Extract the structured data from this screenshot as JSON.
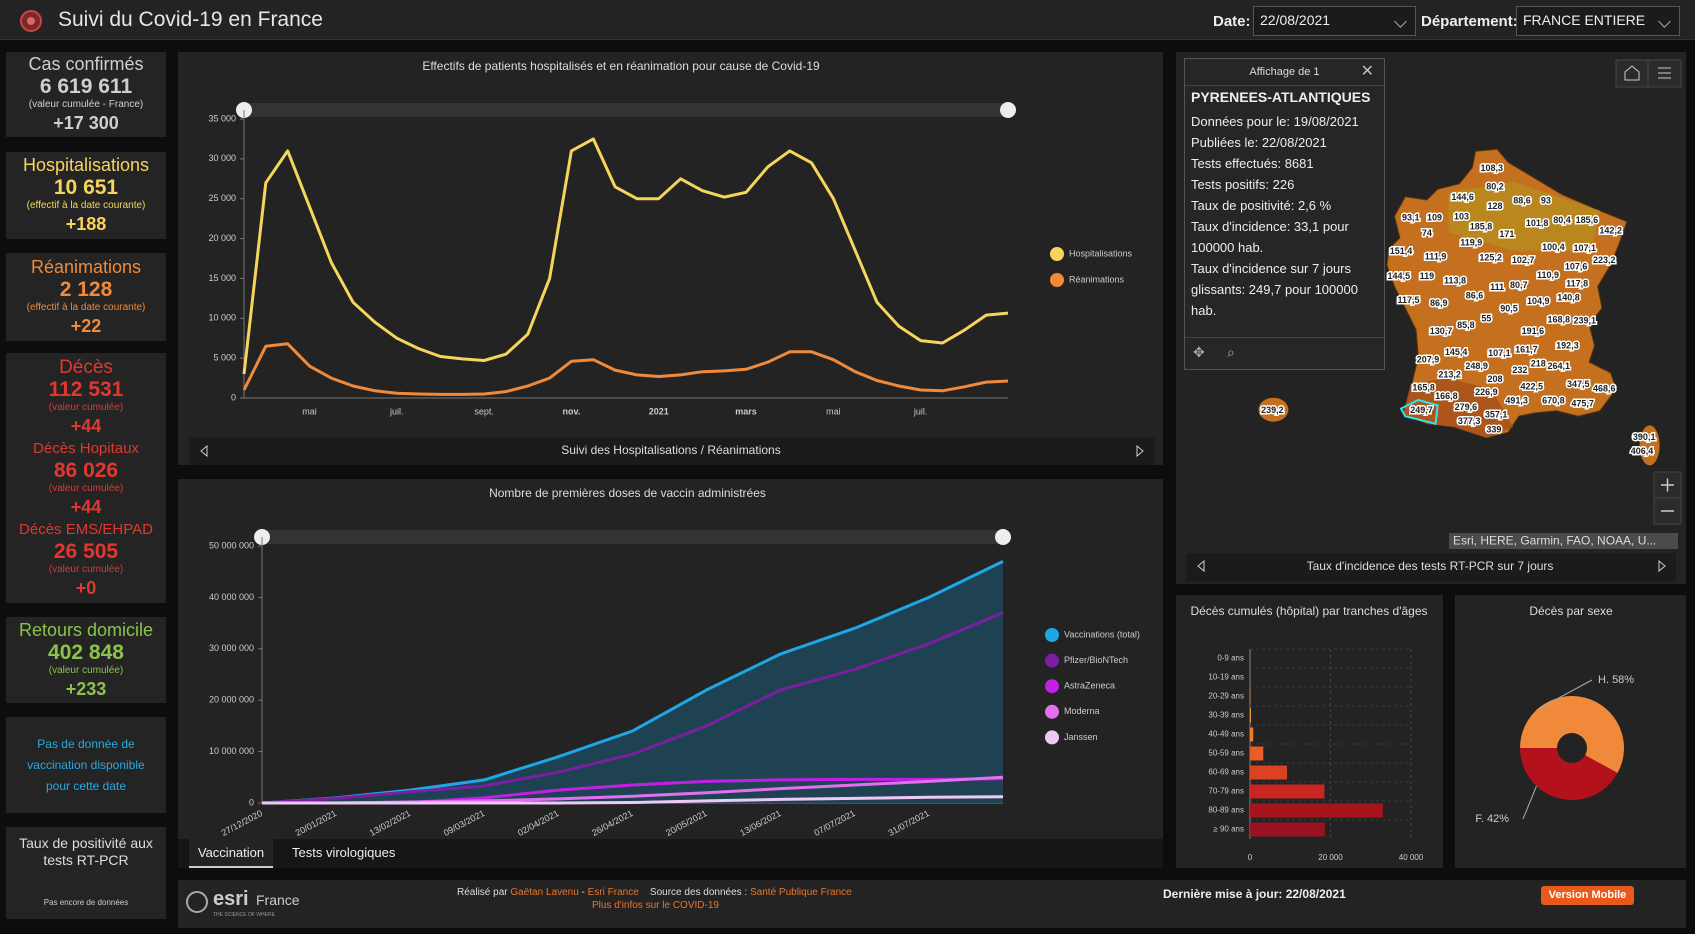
{
  "header": {
    "title": "Suivi du Covid-19 en France",
    "date_label": "Date:",
    "date": "22/08/2021",
    "dept_label": "Département:",
    "dept": "FRANCE ENTIERE"
  },
  "sidebar": {
    "cards": [
      {
        "color": "#cfcfcf",
        "entries": [
          {
            "title": "Cas confirmés",
            "value": "6 619 611",
            "note": "(valeur cumulée - France)",
            "delta": "+17 300"
          }
        ]
      },
      {
        "color": "#f6d55c",
        "entries": [
          {
            "title": "Hospitalisations",
            "value": "10 651",
            "note": "(effectif à la date courante)",
            "delta": "+188"
          }
        ]
      },
      {
        "color": "#f08a3a",
        "entries": [
          {
            "title": "Réanimations",
            "value": "2 128",
            "note": "(effectif à la date courante)",
            "delta": "+22"
          }
        ]
      },
      {
        "color": "#e0382e",
        "entries": [
          {
            "title": "Décès",
            "value": "112 531",
            "note": "(valeur cumulée)",
            "delta": "+44"
          },
          {
            "title": "Décès Hopitaux",
            "value": "86 026",
            "note": "(valeur cumulée)",
            "delta": "+44"
          },
          {
            "title": "Décès EMS/EHPAD",
            "value": "26 505",
            "note": "(valeur cumulée)",
            "delta": "+0"
          }
        ]
      },
      {
        "color": "#8bc34a",
        "entries": [
          {
            "title": "Retours domicile",
            "value": "402 848",
            "note": "(valeur cumulée)",
            "delta": "+233"
          }
        ]
      }
    ],
    "vaccination_note": "Pas de donnée de vaccination disponible pour cette date",
    "positivity": {
      "title": "Taux de positivité aux tests RT-PCR",
      "note": "Pas encore de données"
    }
  },
  "chart_data": [
    {
      "type": "line",
      "title": "Effectifs de patients hospitalisés et en réanimation pour cause de Covid-19",
      "footer": "Suivi des Hospitalisations / Réanimations",
      "categories": [
        null,
        null,
        null,
        "mai",
        null,
        null,
        null,
        "juil.",
        null,
        null,
        null,
        "sept.",
        null,
        null,
        null,
        "nov.",
        null,
        null,
        null,
        "2021",
        null,
        null,
        null,
        "mars",
        null,
        null,
        null,
        "mai",
        null,
        null,
        null,
        "juil.",
        null,
        null,
        null,
        null
      ],
      "series": [
        {
          "name": "Hospitalisations",
          "color": "#f6d55c",
          "values": [
            3000,
            27000,
            31000,
            24000,
            17000,
            12000,
            9500,
            7500,
            6200,
            5200,
            4900,
            4700,
            5500,
            8000,
            15000,
            31000,
            32500,
            26500,
            25000,
            25000,
            27500,
            26000,
            25200,
            25800,
            29000,
            31000,
            29500,
            25000,
            18500,
            12000,
            9000,
            7200,
            6900,
            8500,
            10400,
            10651
          ]
        },
        {
          "name": "Réanimations",
          "color": "#f08a3a",
          "values": [
            1000,
            6500,
            6800,
            4000,
            2500,
            1500,
            900,
            600,
            500,
            450,
            450,
            500,
            800,
            1500,
            2500,
            4600,
            4800,
            3500,
            2900,
            2700,
            2900,
            3300,
            3400,
            3600,
            4500,
            5800,
            5800,
            4800,
            3300,
            2200,
            1500,
            1000,
            900,
            1400,
            2000,
            2128
          ]
        }
      ],
      "ylim": [
        0,
        35000
      ],
      "yticks": [
        0,
        {
          "value": 5000,
          "label": "5 000"
        },
        {
          "value": 10000,
          "label": "10 000"
        },
        {
          "value": 15000,
          "label": "15 000"
        },
        {
          "value": 20000,
          "label": "20 000"
        },
        {
          "value": 25000,
          "label": "25 000"
        },
        {
          "value": 30000,
          "label": "30 000"
        },
        {
          "value": 35000,
          "label": "35 000"
        }
      ],
      "grid": false,
      "legend": "right"
    },
    {
      "type": "area-line",
      "title": "Nombre de premières doses de vaccin administrées",
      "categories": [
        "27/12/2020",
        "20/01/2021",
        "13/02/2021",
        "09/03/2021",
        "02/04/2021",
        "26/04/2021",
        "20/05/2021",
        "13/06/2021",
        "07/07/2021",
        "31/07/2021",
        null
      ],
      "series": [
        {
          "name": "Vaccinations (total)",
          "color": "#1ea7e6",
          "values": [
            0,
            1000000,
            2500000,
            4500000,
            9000000,
            14000000,
            22000000,
            29000000,
            34000000,
            40000000,
            47000000
          ]
        },
        {
          "name": "Pfizer/BioNTech",
          "color": "#7a1fa2",
          "values": [
            0,
            900000,
            2200000,
            3300000,
            6000000,
            9500000,
            15000000,
            22000000,
            26000000,
            31000000,
            37000000
          ]
        },
        {
          "name": "AstraZeneca",
          "color": "#c21fe6",
          "values": [
            0,
            0,
            100000,
            1000000,
            2500000,
            3500000,
            4200000,
            4500000,
            4600000,
            4600000,
            4700000
          ]
        },
        {
          "name": "Moderna",
          "color": "#e070f0",
          "values": [
            0,
            20000,
            200000,
            400000,
            800000,
            1300000,
            2000000,
            2800000,
            3500000,
            4200000,
            5000000
          ]
        },
        {
          "name": "Janssen",
          "color": "#f0c8f5",
          "values": [
            0,
            0,
            0,
            0,
            0,
            100000,
            400000,
            700000,
            900000,
            1100000,
            1200000
          ]
        }
      ],
      "ylim": [
        0,
        50000000
      ],
      "yticks": [
        0,
        {
          "value": 10000000,
          "label": "10 000 000"
        },
        {
          "value": 20000000,
          "label": "20 000 000"
        },
        {
          "value": 30000000,
          "label": "30 000 000"
        },
        {
          "value": 40000000,
          "label": "40 000 000"
        },
        {
          "value": 50000000,
          "label": "50 000 000"
        }
      ],
      "area_color": "#1e4656",
      "grid": false,
      "legend": "right"
    },
    {
      "type": "bar",
      "orientation": "horizontal",
      "title": "Décès cumulés (hôpital) par tranches d'âges",
      "categories": [
        "0-9 ans",
        "10-19 ans",
        "20-29 ans",
        "30-39 ans",
        "40-49 ans",
        "50-59 ans",
        "60-69 ans",
        "70-79 ans",
        "80-89 ans",
        "≥ 90 ans"
      ],
      "values": [
        5,
        10,
        60,
        250,
        800,
        3300,
        9200,
        18500,
        33000,
        18600
      ],
      "colors": [
        "#f7c24a",
        "#f7b442",
        "#f5a63b",
        "#f39234",
        "#ef7a2e",
        "#e85d28",
        "#dc4124",
        "#c82621",
        "#a8141c",
        "#9a1220"
      ],
      "xlim": [
        0,
        40000
      ],
      "xticks": [
        0,
        {
          "value": 20000,
          "label": "20 000"
        },
        {
          "value": 40000,
          "label": "40 000"
        }
      ],
      "grid": true
    },
    {
      "type": "pie",
      "title": "Décès par sexe",
      "categories": [
        "H.",
        "F."
      ],
      "values": [
        58,
        42
      ],
      "value_labels": [
        "58%",
        "42%"
      ],
      "colors": [
        "#f08a3a",
        "#b3121c"
      ],
      "hole": true
    }
  ],
  "tabs": [
    "Vaccination",
    "Tests virologiques"
  ],
  "map": {
    "footer": "Taux d'incidence des tests RT-PCR sur 7 jours",
    "attribution": "Esri, HERE, Garmin, FAO, NOAA, U...",
    "labels": [
      "108,3",
      "80,2",
      "144,6",
      "88,6",
      "93",
      "128",
      "93,1",
      "109",
      "103",
      "185,8",
      "185,6",
      "142,2",
      "74",
      "171",
      "101,8",
      "80,4",
      "107,1",
      "119,9",
      "151,4",
      "111,9",
      "125,2",
      "102,7",
      "100,4",
      "223,2",
      "107,6",
      "144,5",
      "119",
      "113,8",
      "110,9",
      "111",
      "80,7",
      "117,8",
      "117,5",
      "86,9",
      "86,6",
      "104,9",
      "140,8",
      "90,5",
      "130,7",
      "85,8",
      "55",
      "191,6",
      "168,8",
      "239,1",
      "145,4",
      "107,1",
      "161,7",
      "192,3",
      "207,9",
      "213,2",
      "248,9",
      "232",
      "218",
      "264,1",
      "208",
      "165,8",
      "422,5",
      "347,5",
      "468,6",
      "166,8",
      "226,9",
      "491,3",
      "670,8",
      "475,7",
      "249,7",
      "279,6",
      "377,3",
      "357,1",
      "339",
      "239,2",
      "390,1",
      "406,4"
    ]
  },
  "popup": {
    "title": "Affichage de 1",
    "heading": "PYRENEES-ATLANTIQUES",
    "lines": [
      "Données pour le: 19/08/2021",
      "Publiées le: 22/08/2021",
      "Tests effectués: 8681",
      "Tests positifs: 226",
      "Taux de positivité: 2,6 %",
      "Taux d'incidence: 33,1 pour 100000 hab.",
      "Taux d'incidence sur 7 jours glissants: 249,7 pour 100000 hab."
    ]
  },
  "footer": {
    "made_by": "Réalisé par",
    "author": "Gaëtan Lavenu",
    "separator": "-",
    "company": "Esri France",
    "source_label": "Source des données :",
    "source": "Santé Publique France",
    "more": "Plus d'infos sur le COVID-19",
    "updated": "Dernière mise à jour: 22/08/2021",
    "mobile": "Version Mobile",
    "logo": "esri",
    "logo_country": "France",
    "logo_tagline": "THE SCIENCE OF WHERE"
  }
}
